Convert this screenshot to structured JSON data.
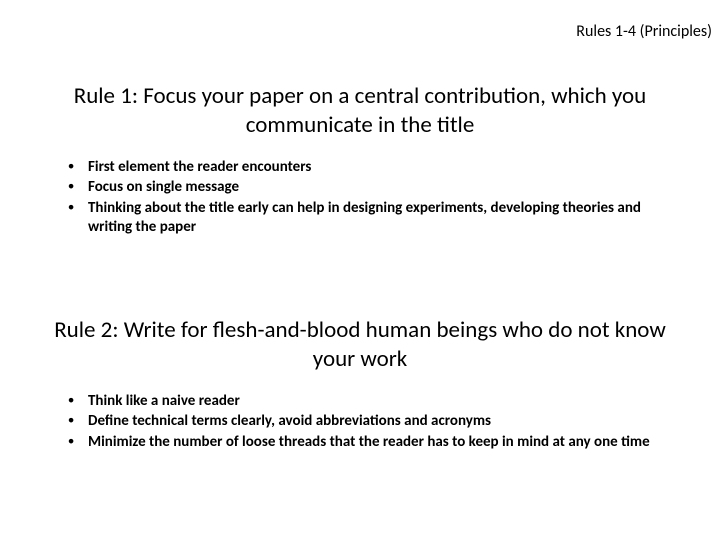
{
  "header": {
    "label": "Rules 1-4 (Principles)"
  },
  "rules": [
    {
      "heading": "Rule 1: Focus your paper on a central contribution, which you communicate in the title",
      "bullets": [
        "First element the reader encounters",
        "Focus on single message",
        "Thinking about the title early can help in designing experiments, developing theories and writing the paper"
      ]
    },
    {
      "heading": "Rule 2: Write for flesh-and-blood human beings who do not know your work",
      "bullets": [
        "Think like a naive reader",
        "Define technical terms clearly, avoid abbreviations and acronyms",
        "Minimize the number of loose threads that the reader has to keep in mind at any one time"
      ]
    }
  ],
  "style": {
    "background_color": "#ffffff",
    "text_color": "#000000",
    "header_fontsize": 16,
    "heading_fontsize": 23,
    "bullet_fontsize": 15,
    "bullet_fontweight": 700,
    "font_family": "Calibri"
  }
}
